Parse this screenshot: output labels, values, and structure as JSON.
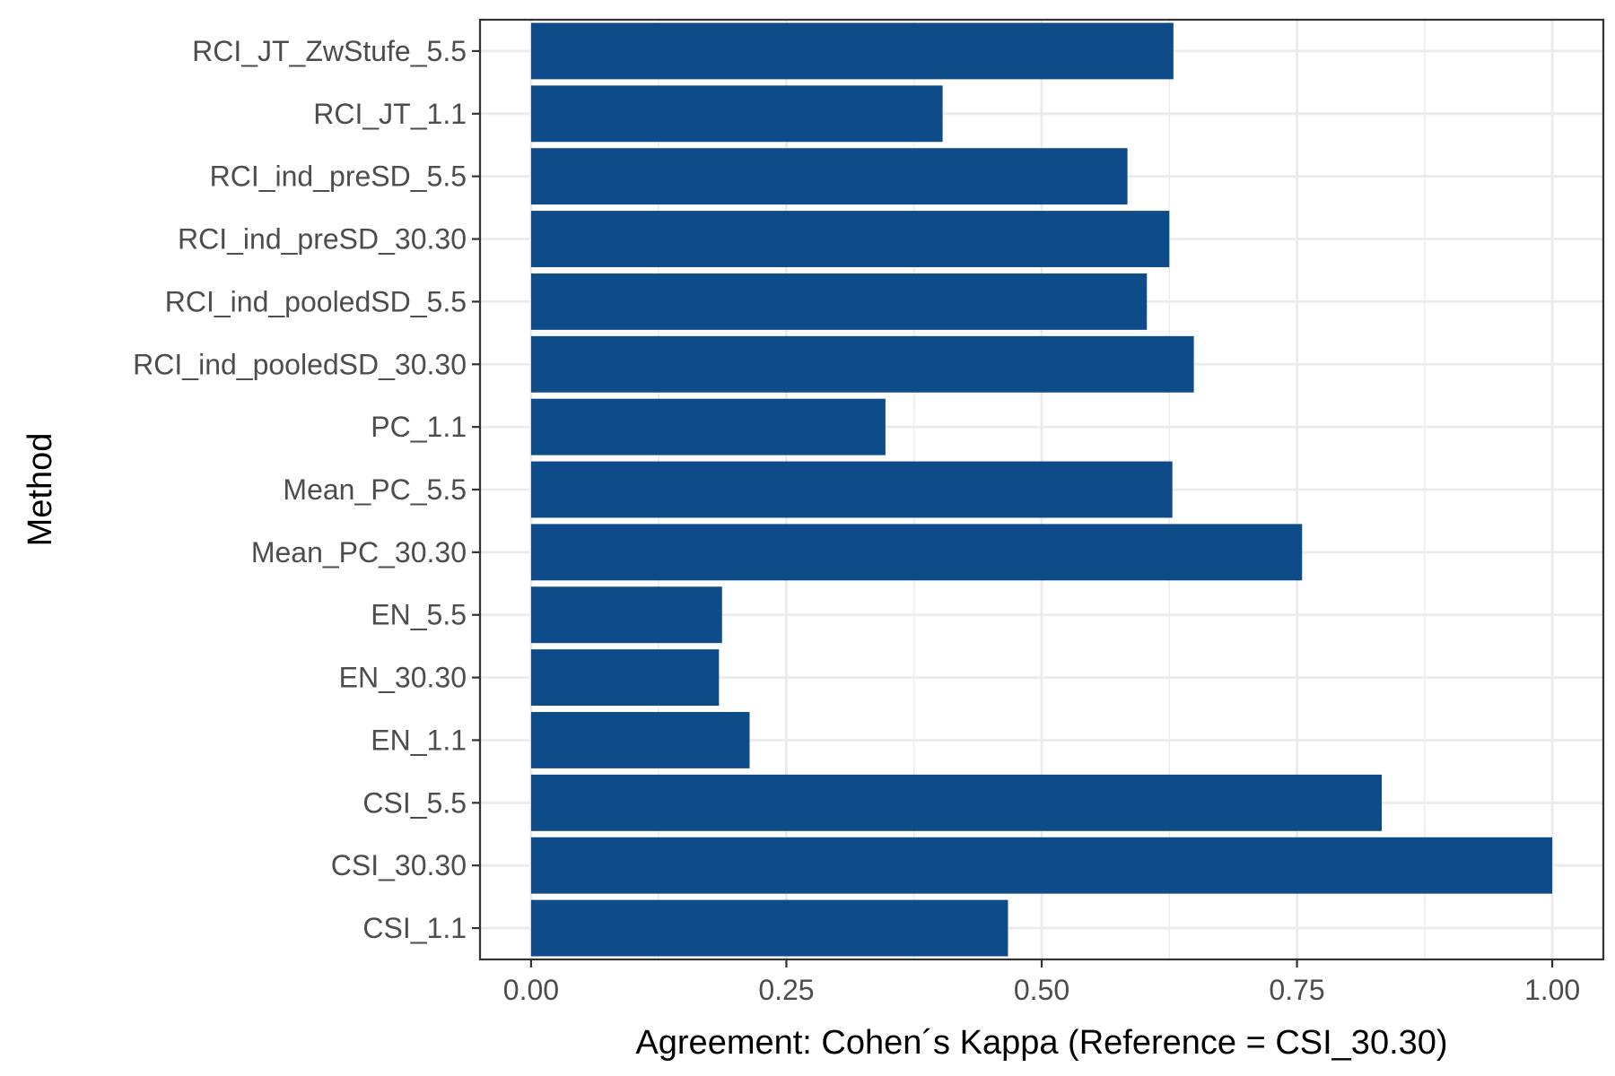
{
  "chart_data": {
    "type": "bar",
    "orientation": "horizontal",
    "title": "",
    "xlabel": "Agreement: Cohen´s Kappa (Reference = CSI_30.30)",
    "ylabel": "Method",
    "xlim": [
      -0.05,
      1.05
    ],
    "x_ticks": [
      0,
      0.25,
      0.5,
      0.75,
      1.0
    ],
    "x_tick_labels": [
      "0.00",
      "0.25",
      "0.50",
      "0.75",
      "1.00"
    ],
    "grid": true,
    "legend": "none",
    "bar_color": "#0d4c89",
    "categories": [
      "RCI_JT_ZwStufe_5.5",
      "RCI_JT_1.1",
      "RCI_ind_preSD_5.5",
      "RCI_ind_preSD_30.30",
      "RCI_ind_pooledSD_5.5",
      "RCI_ind_pooledSD_30.30",
      "PC_1.1",
      "Mean_PC_5.5",
      "Mean_PC_30.30",
      "EN_5.5",
      "EN_30.30",
      "EN_1.1",
      "CSI_5.5",
      "CSI_30.30",
      "CSI_1.1"
    ],
    "values": [
      0.629,
      0.403,
      0.584,
      0.625,
      0.603,
      0.649,
      0.347,
      0.628,
      0.755,
      0.187,
      0.184,
      0.214,
      0.833,
      1.0,
      0.467
    ]
  }
}
